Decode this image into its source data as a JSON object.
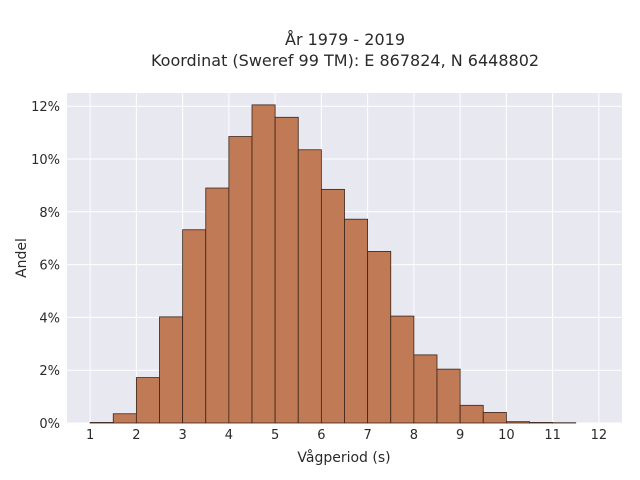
{
  "chart_data": {
    "type": "bar",
    "title_line1": "År 1979 - 2019",
    "title_line2": "Koordinat (Sweref 99 TM): E 867824, N 6448802",
    "xlabel": "Vågperiod (s)",
    "ylabel": "Andel",
    "xlim": [
      0.5,
      12.5
    ],
    "ylim": [
      0,
      12.5
    ],
    "x_ticks": [
      1,
      2,
      3,
      4,
      5,
      6,
      7,
      8,
      9,
      10,
      11,
      12
    ],
    "y_ticks": [
      0,
      2,
      4,
      6,
      8,
      10,
      12
    ],
    "y_tick_labels": [
      "0%",
      "2%",
      "4%",
      "6%",
      "8%",
      "10%",
      "12%"
    ],
    "bin_width": 0.5,
    "bin_starts": [
      1.0,
      1.5,
      2.0,
      2.5,
      3.0,
      3.5,
      4.0,
      4.5,
      5.0,
      5.5,
      6.0,
      6.5,
      7.0,
      7.5,
      8.0,
      8.5,
      9.0,
      9.5,
      10.0,
      10.5,
      11.0
    ],
    "values": [
      0.02,
      0.35,
      1.72,
      4.02,
      7.32,
      8.9,
      10.85,
      12.05,
      11.58,
      10.35,
      8.85,
      7.72,
      6.5,
      4.05,
      2.58,
      2.04,
      0.67,
      0.4,
      0.05,
      0.02,
      0.01
    ],
    "grid": true,
    "colors": {
      "bar_fill": "#c07a55",
      "bar_stroke": "#3a2418",
      "plot_background": "#e8e8f0",
      "grid": "#ffffff"
    }
  }
}
